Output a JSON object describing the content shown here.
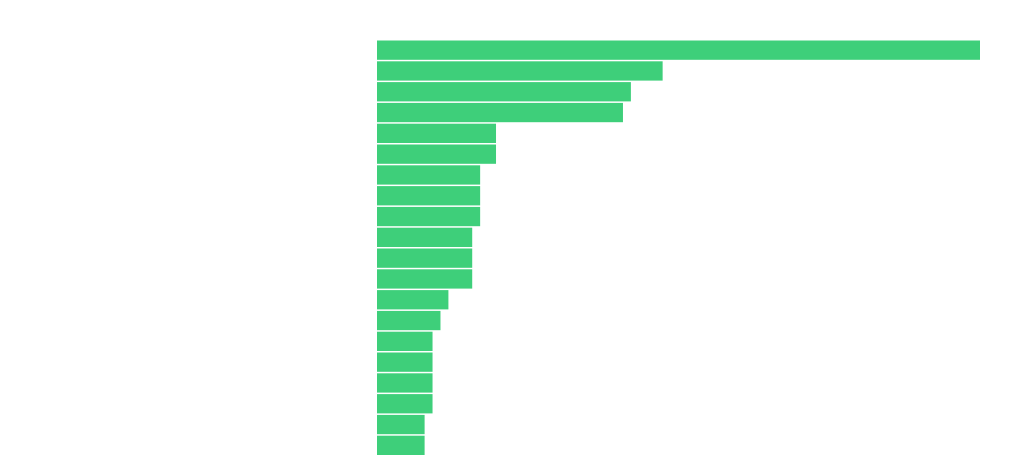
{
  "chart_data": {
    "type": "bar",
    "orientation": "horizontal",
    "categories": [
      null,
      null,
      null,
      null,
      null,
      null,
      null,
      null,
      null,
      null,
      null,
      null,
      null,
      null,
      null,
      null,
      null,
      null,
      null,
      null
    ],
    "values": [
      76,
      36,
      32,
      31,
      15,
      15,
      13,
      13,
      13,
      12,
      12,
      12,
      9,
      8,
      7,
      7,
      7,
      7,
      6,
      6
    ],
    "color": "#3ecf7a",
    "xlim": [
      0,
      76
    ]
  }
}
